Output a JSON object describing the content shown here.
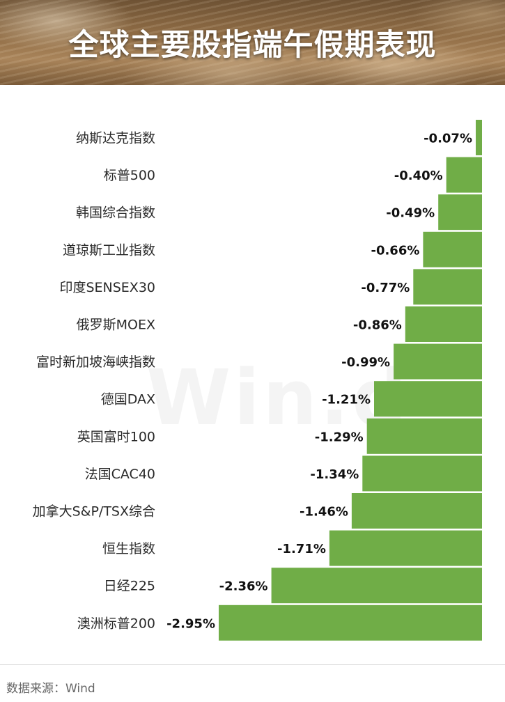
{
  "header": {
    "title": "全球主要股指端午假期表现"
  },
  "watermark": "Win.d",
  "footer": {
    "source": "数据来源：Wind"
  },
  "colors": {
    "bar": "#70ad47"
  },
  "chart_data": {
    "type": "bar",
    "orientation": "horizontal",
    "title": "全球主要股指端午假期表现",
    "categories": [
      "纳斯达克指数",
      "标普500",
      "韩国综合指数",
      "道琼斯工业指数",
      "印度SENSEX30",
      "俄罗斯MOEX",
      "富时新加坡海峡指数",
      "德国DAX",
      "英国富时100",
      "法国CAC40",
      "加拿大S&P/TSX综合",
      "恒生指数",
      "日经225",
      "澳洲标普200"
    ],
    "values": [
      -0.07,
      -0.4,
      -0.49,
      -0.66,
      -0.77,
      -0.86,
      -0.99,
      -1.21,
      -1.29,
      -1.34,
      -1.46,
      -1.71,
      -2.36,
      -2.95
    ],
    "value_labels": [
      "-0.07%",
      "-0.40%",
      "-0.49%",
      "-0.66%",
      "-0.77%",
      "-0.86%",
      "-0.99%",
      "-1.21%",
      "-1.29%",
      "-1.34%",
      "-1.46%",
      "-1.71%",
      "-2.36%",
      "-2.95%"
    ],
    "unit": "%",
    "xlim": [
      -2.95,
      0
    ],
    "grid": false,
    "legend": "none"
  }
}
